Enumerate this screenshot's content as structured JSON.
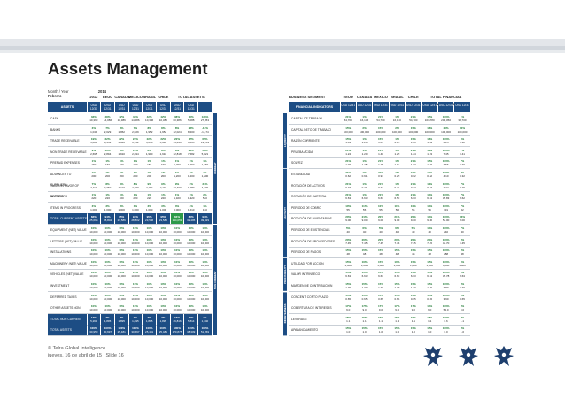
{
  "slide": {
    "title": "Assets Management",
    "period_label": "Month / Year",
    "period_value": "2014",
    "period_month": "Febrero"
  },
  "assets_table": {
    "countries": [
      "2012",
      "EEUU",
      "CANADA",
      "MEXICO",
      "BRASIL",
      "CHILE",
      "TOTAL ASSETS"
    ],
    "col_headers": [
      "ASSETS",
      "USD 12/31",
      "USD 12/31",
      "USD 12/31",
      "USD 12/31",
      "USD 12/31",
      "USD 12/31",
      "USD 12/31",
      "USD 12/31"
    ],
    "rows": [
      {
        "label": "CASH",
        "v": [
          "33%",
          "48%",
          "42%",
          "48%",
          "42%",
          "42%",
          "38%",
          "15%",
          "136%"
        ],
        "s": [
          "10,393",
          "14,086",
          "10,386",
          "14,086",
          "10,386",
          "10,386",
          "60,386",
          "5,088",
          "27,053"
        ]
      },
      {
        "label": "BANKS",
        "v": [
          "3%",
          "7%",
          "8%",
          "7%",
          "8%",
          "8%",
          "8%",
          "23%",
          "-12%"
        ],
        "s": [
          "1,049",
          "2,029",
          "1,952",
          "2,029",
          "1,952",
          "1,952",
          "12,024",
          "8,200",
          "-1,474"
        ]
      },
      {
        "label": "TRADE RECEIVABLE",
        "v": [
          "19%",
          "22%",
          "22%",
          "22%",
          "22%",
          "22%",
          "22%",
          "17%",
          "65%"
        ],
        "s": [
          "5,869",
          "6,352",
          "5,646",
          "6,352",
          "5,646",
          "5,646",
          "34,446",
          "6,065",
          "13,259"
        ]
      },
      {
        "label": "NON TRADE RECEIVABLE",
        "v": [
          "9%",
          "10%",
          "8%",
          "10%",
          "8%",
          "8%",
          "8%",
          "21%",
          "58%"
        ],
        "s": [
          "2,695",
          "2,894",
          "1,910",
          "2,894",
          "1,910",
          "1,910",
          "12,818",
          "7,582",
          "5,021"
        ]
      },
      {
        "label": "PREPAID EXPENSES",
        "v": [
          "1%",
          "1%",
          "1%",
          "1%",
          "1%",
          "1%",
          "1%",
          "1%",
          "1%"
        ],
        "s": [
          "160",
          "160",
          "160",
          "160",
          "160",
          "160",
          "1,260",
          "1,260",
          "1,260"
        ]
      },
      {
        "label": "ADVANCES TO SUPPLIERS",
        "v": [
          "1%",
          "1%",
          "1%",
          "1%",
          "1%",
          "1%",
          "1%",
          "1%",
          "1%"
        ],
        "s": [
          "200",
          "200",
          "200",
          "200",
          "200",
          "200",
          "1,200",
          "1,200",
          "1,200"
        ]
      },
      {
        "label": "TAXES IN FAVOR OF INVESTORS",
        "v": [
          "7%",
          "8%",
          "9%",
          "8%",
          "9%",
          "9%",
          "9%",
          "2%",
          "34%"
        ],
        "s": [
          "2,110",
          "2,360",
          "2,110",
          "2,360",
          "2,110",
          "2,110",
          "13,400",
          "1,080",
          "4,470"
        ]
      },
      {
        "label": "NETTING",
        "v": [
          "1%",
          "1%",
          "1%",
          "1%",
          "1%",
          "1%",
          "1%",
          "1%",
          "2%"
        ],
        "s": [
          "220",
          "220",
          "220",
          "220",
          "220",
          "220",
          "1,320",
          "1,320",
          "540"
        ]
      },
      {
        "label": "ITEMS IN PROGRESS",
        "v": [
          "3%",
          "3%",
          "3%",
          "3%",
          "3%",
          "3%",
          "3%",
          "4%",
          "1%"
        ],
        "s": [
          "1,000",
          "1,000",
          "1,000",
          "1,000",
          "1,000",
          "1,000",
          "6,000",
          "1,610",
          "160"
        ]
      },
      {
        "label": "TOTAL CURRENT ASSETS",
        "v": [
          "83%",
          "94%",
          "95%",
          "94%",
          "95%",
          "95%",
          "84%",
          "85%",
          "97%"
        ],
        "s": [
          "25,698",
          "28,802",
          "23,586",
          "28,802",
          "23,586",
          "23,586",
          "144,059",
          "32,495",
          "49,829"
        ],
        "total": true
      },
      {
        "label": "EQUIPMENT (NET) VALUE",
        "v": [
          "10%",
          "10%",
          "10%",
          "10%",
          "10%",
          "10%",
          "10%",
          "10%",
          "10%"
        ],
        "s": [
          "10,000",
          "10,000",
          "10,000",
          "10,000",
          "10,000",
          "10,000",
          "10,000",
          "10,000",
          "10,000"
        ]
      },
      {
        "label": "LETTERS (NET) VALUE",
        "v": [
          "10%",
          "10%",
          "10%",
          "10%",
          "10%",
          "10%",
          "10%",
          "10%",
          "10%"
        ],
        "s": [
          "10,000",
          "10,000",
          "10,000",
          "10,000",
          "10,000",
          "10,000",
          "10,000",
          "10,000",
          "10,000"
        ]
      },
      {
        "label": "INSTALATIONS",
        "v": [
          "10%",
          "10%",
          "10%",
          "10%",
          "10%",
          "10%",
          "10%",
          "10%",
          "10%"
        ],
        "s": [
          "10,000",
          "10,000",
          "10,000",
          "10,000",
          "10,000",
          "10,000",
          "10,000",
          "10,000",
          "10,000"
        ]
      },
      {
        "label": "MACHINERY (NET) VALUE",
        "v": [
          "10%",
          "10%",
          "10%",
          "10%",
          "10%",
          "10%",
          "10%",
          "10%",
          "10%"
        ],
        "s": [
          "10,000",
          "10,000",
          "10,000",
          "10,000",
          "10,000",
          "10,000",
          "10,000",
          "10,000",
          "10,000"
        ]
      },
      {
        "label": "VEHICLES (NET) VALUE",
        "v": [
          "10%",
          "10%",
          "10%",
          "10%",
          "10%",
          "10%",
          "10%",
          "10%",
          "10%"
        ],
        "s": [
          "10,000",
          "10,000",
          "10,000",
          "10,000",
          "10,000",
          "10,000",
          "10,000",
          "10,000",
          "10,000"
        ]
      },
      {
        "label": "INVESTMENT",
        "v": [
          "10%",
          "10%",
          "10%",
          "10%",
          "10%",
          "10%",
          "10%",
          "10%",
          "10%"
        ],
        "s": [
          "10,000",
          "10,000",
          "10,000",
          "10,000",
          "10,000",
          "10,000",
          "10,000",
          "10,000",
          "10,000"
        ]
      },
      {
        "label": "DEFERRED TAXES",
        "v": [
          "10%",
          "10%",
          "10%",
          "10%",
          "10%",
          "10%",
          "10%",
          "10%",
          "10%"
        ],
        "s": [
          "10,000",
          "10,000",
          "10,000",
          "10,000",
          "10,000",
          "10,000",
          "10,000",
          "10,000",
          "10,000"
        ]
      },
      {
        "label": "OTHER ASSETS NON CURRENT",
        "v": [
          "10%",
          "10%",
          "10%",
          "10%",
          "10%",
          "10%",
          "10%",
          "10%",
          "10%"
        ],
        "s": [
          "10,000",
          "10,000",
          "10,000",
          "10,000",
          "10,000",
          "10,000",
          "10,000",
          "10,000",
          "10,000"
        ]
      },
      {
        "label": "TOTAL NON CURRENT ASSETS",
        "v": [
          "17%",
          "7%",
          "7%",
          "7%",
          "7%",
          "7%",
          "16%",
          "15%",
          "1%"
        ],
        "s": [
          "5,261",
          "1,895",
          "1,895",
          "1,895",
          "1,895",
          "1,895",
          "26,816",
          "5,814",
          "1,440"
        ],
        "total": true
      },
      {
        "label": "TOTAL ASSETS",
        "v": [
          "100%",
          "100%",
          "100%",
          "100%",
          "100%",
          "100%",
          "100%",
          "100%",
          "100%"
        ],
        "s": [
          "30,959",
          "30,697",
          "25,481",
          "30,697",
          "25,481",
          "25,481",
          "170,875",
          "38,309",
          "51,269"
        ],
        "total": true
      }
    ],
    "side_tabs": [
      "CURRENT",
      "NON CURRENT"
    ]
  },
  "indicators_table": {
    "section_title": "BUSINESS SEGMENT",
    "countries": [
      "EEUU",
      "CANADA",
      "MEXICO",
      "BRASIL",
      "CHILE",
      "TOTAL FINANCIAL INDICATORS"
    ],
    "col_headers": [
      "FINANCIAL INDICATORS",
      "USD 12/31",
      "USD 12/31",
      "USD 12/31",
      "USD 12/31",
      "USD 12/31",
      "USD 12/31",
      "USD 12/31",
      "USD 12/31"
    ],
    "rows": [
      {
        "label": "CAPITAL DE TRABAJO",
        "v": [
          "21%",
          "1%",
          "21%",
          "1%",
          "21%",
          "15%",
          "100%",
          "1%"
        ],
        "s": [
          "54,700",
          "16,130",
          "54,700",
          "16,130",
          "54,700",
          "161,780",
          "200,050",
          "39,700"
        ]
      },
      {
        "label": "CAPITAL NETO DE TRABAJO",
        "v": [
          "15%",
          "2%",
          "15%",
          "2%",
          "15%",
          "18%",
          "25%",
          "10%"
        ],
        "s": [
          "100,000",
          "100,000",
          "100,000",
          "100,000",
          "100,000",
          "100,000",
          "100,000",
          "100,000"
        ]
      },
      {
        "label": "RAZÓN CORRIENTE",
        "v": [
          "15%",
          "1%",
          "15%",
          "1%",
          "15%",
          "18%",
          "100%",
          "5%"
        ],
        "s": [
          "1.03",
          "1.26",
          "1.07",
          "2.15",
          "1.03",
          "1.09",
          "6.25",
          "1.12"
        ]
      },
      {
        "label": "PRUEBA ÁCIDA",
        "v": [
          "21%",
          "1%",
          "21%",
          "1%",
          "21%",
          "11%",
          "100%",
          "7%"
        ],
        "s": [
          "1.24",
          "1.20",
          "1.40",
          "1.29",
          "1.24",
          "1.33",
          "7.45",
          "1.41"
        ]
      },
      {
        "label": "SOLVEZ",
        "v": [
          "21%",
          "1%",
          "21%",
          "1%",
          "21%",
          "15%",
          "100%",
          "7%"
        ],
        "s": [
          "1.03",
          "1.25",
          "1.25",
          "1.15",
          "1.03",
          "1.03",
          "7.56",
          "1.30"
        ]
      },
      {
        "label": "ESTABILIDAD",
        "v": [
          "21%",
          "1%",
          "21%",
          "1%",
          "21%",
          "12%",
          "100%",
          "7%"
        ],
        "s": [
          "0.62",
          "0.91",
          "0.91",
          "0.29",
          "0.62",
          "0.82",
          "4.10",
          "0.32"
        ]
      },
      {
        "label": "ROTACIÓN DE ACTIVOS",
        "v": [
          "21%",
          "1%",
          "21%",
          "1%",
          "21%",
          "11%",
          "100%",
          "7%"
        ],
        "s": [
          "0.37",
          "0.41",
          "0.31",
          "0.21",
          "0.37",
          "0.37",
          "2.22",
          "0.29"
        ]
      },
      {
        "label": "ROTACIÓN DE CARTERA",
        "v": [
          "21%",
          "1%",
          "21%",
          "1%",
          "21%",
          "10%",
          "100%",
          "7%"
        ],
        "s": [
          "6.63",
          "6.63",
          "6.63",
          "6.53",
          "6.63",
          "6.63",
          "39.83",
          "6.62"
        ]
      },
      {
        "label": "PERIODO DE COBRO",
        "v": [
          "10%",
          "11%",
          "10%",
          "11%",
          "10%",
          "10%",
          "100%",
          "7%"
        ],
        "s": [
          "55",
          "55",
          "55",
          "56",
          "55",
          "55",
          "331",
          "52"
        ]
      },
      {
        "label": "ROTACIÓN DE INVENTARIOS",
        "v": [
          "20%",
          "21%",
          "20%",
          "21%",
          "20%",
          "13%",
          "100%",
          "13%"
        ],
        "s": [
          "9.00",
          "9.00",
          "9.00",
          "9.00",
          "9.00",
          "9.00",
          "54.00",
          "9.00"
        ]
      },
      {
        "label": "PERIODO DE EXISTENCIAS",
        "v": [
          "5%",
          "6%",
          "5%",
          "6%",
          "5%",
          "10%",
          "100%",
          "7%"
        ],
        "s": [
          "40",
          "40",
          "40",
          "40",
          "40",
          "40",
          "240",
          "40"
        ]
      },
      {
        "label": "ROTACIÓN DE PROVEEDORES",
        "v": [
          "20%",
          "20%",
          "20%",
          "20%",
          "20%",
          "20%",
          "100%",
          "0%"
        ],
        "s": [
          "7.45",
          "7.45",
          "7.45",
          "7.45",
          "7.45",
          "7.45",
          "44.70",
          "7.45"
        ]
      },
      {
        "label": "PERIODO DE PAGOS",
        "v": [
          "15%",
          "15%",
          "15%",
          "15%",
          "15%",
          "15%",
          "100%",
          "0%"
        ],
        "s": [
          "48",
          "48",
          "48",
          "48",
          "48",
          "48",
          "288",
          "48"
        ]
      },
      {
        "label": "UTILIDAD POR ACCIÓN",
        "v": [
          "15%",
          "10%",
          "15%",
          "10%",
          "15%",
          "15%",
          "100%",
          "5%"
        ],
        "s": [
          "1,000",
          "1,000",
          "1,000",
          "1,000",
          "1,000",
          "1,000",
          "6,000",
          "1,000"
        ]
      },
      {
        "label": "VALOR INTRÍNSECO",
        "v": [
          "15%",
          "15%",
          "15%",
          "15%",
          "15%",
          "15%",
          "100%",
          "0%"
        ],
        "s": [
          "6.63",
          "6.63",
          "6.63",
          "6.63",
          "6.63",
          "6.63",
          "39.78",
          "6.63"
        ]
      },
      {
        "label": "MARGEN DE CONTRIBUCIÓN",
        "v": [
          "15%",
          "15%",
          "15%",
          "15%",
          "15%",
          "15%",
          "100%",
          "0%"
        ],
        "s": [
          "1.30",
          "1.30",
          "1.30",
          "1.30",
          "1.30",
          "1.30",
          "7.80",
          "1.30"
        ]
      },
      {
        "label": "CONCENT. CORTO PLAZO",
        "v": [
          "15%",
          "15%",
          "15%",
          "15%",
          "15%",
          "15%",
          "100%",
          "0%"
        ],
        "s": [
          "0.65",
          "0.65",
          "0.65",
          "0.65",
          "0.65",
          "0.65",
          "3.90",
          "0.65"
        ]
      },
      {
        "label": "COBERTURA DE INTERESES",
        "v": [
          "17%",
          "17%",
          "17%",
          "17%",
          "17%",
          "17%",
          "100%",
          "0%"
        ],
        "s": [
          "9.0",
          "9.0",
          "9.0",
          "9.0",
          "9.0",
          "9.0",
          "54.0",
          "9.0"
        ]
      },
      {
        "label": "LEVERAGE",
        "v": [
          "15%",
          "15%",
          "15%",
          "15%",
          "15%",
          "15%",
          "100%",
          "0%"
        ],
        "s": [
          "1.1",
          "1.1",
          "1.1",
          "1.1",
          "1.1",
          "1.1",
          "6.6",
          "1.1"
        ]
      },
      {
        "label": "APALANCAMIENTO",
        "v": [
          "15%",
          "15%",
          "15%",
          "15%",
          "15%",
          "15%",
          "100%",
          "0%"
        ],
        "s": [
          "1.0",
          "1.0",
          "1.0",
          "1.0",
          "1.0",
          "1.0",
          "6.0",
          "1.0"
        ]
      }
    ],
    "side_tabs": [
      "LIQUIDITY",
      "ACTIVITY",
      "PROFITABILITY",
      "INDEBTEDNESS"
    ]
  },
  "footer": {
    "line1": "© Telra Global Intelligence",
    "line2": "jueves, 16 de abril de 15 | Slide 16"
  },
  "colors": {
    "header_blue": "#1d4d84",
    "accent_green": "#2d9a4a"
  }
}
